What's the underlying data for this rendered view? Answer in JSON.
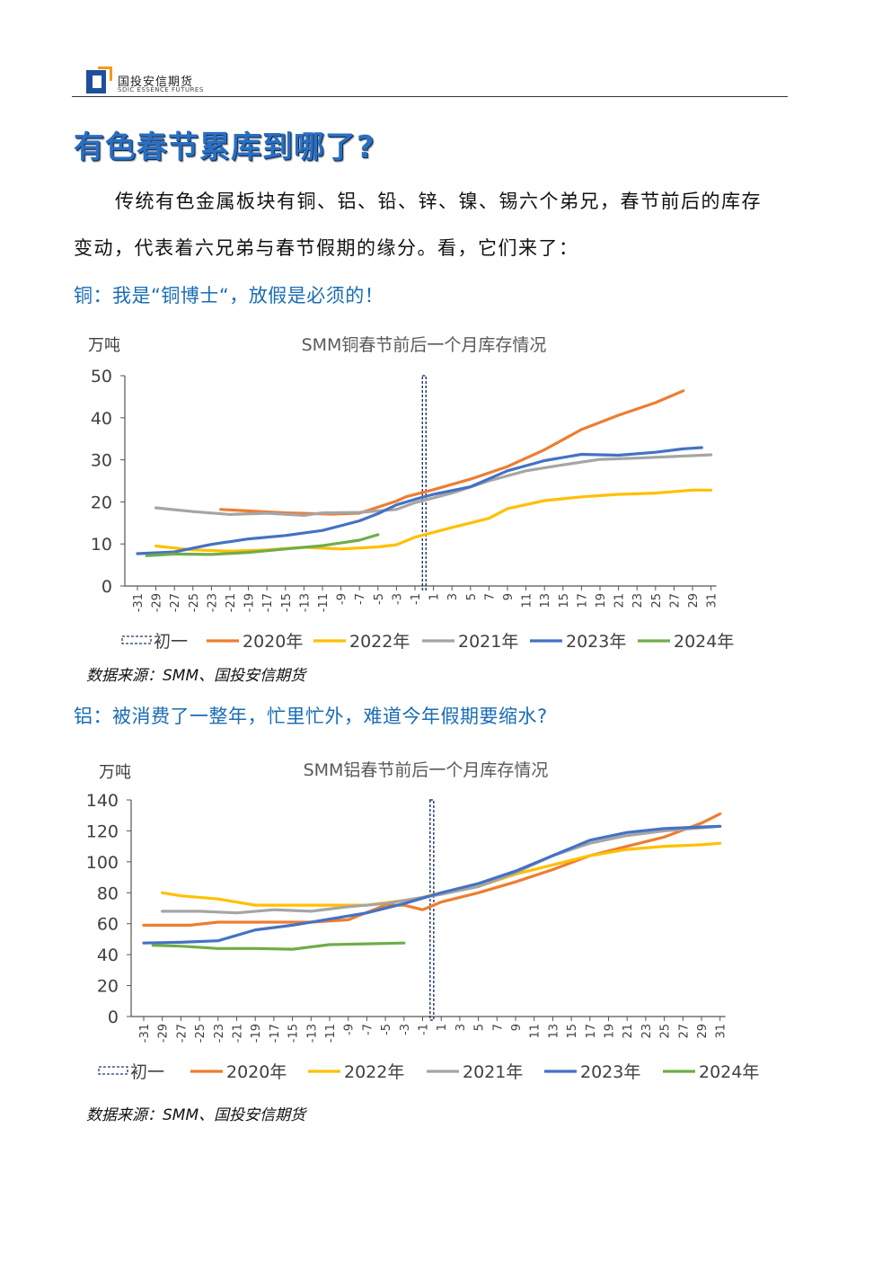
{
  "header": {
    "brand_cn": "国投安信期货",
    "brand_en": "SDIC ESSENCE FUTURES"
  },
  "title": "有色春节累库到哪了?",
  "paragraph": {
    "line1": "传统有色金属板块有铜、铝、铅、锌、镍、锡六个弟兄，春节前后的库存",
    "line2": "变动，代表着六兄弟与春节假期的缘分。看，它们来了："
  },
  "copper_heading": "铜：我是“铜博士“，放假是必须的！",
  "aluminum_heading": "铝：被消费了一整年，忙里忙外，难道今年假期要缩水?",
  "source_text": "数据来源：SMM、国投安信期货",
  "colors": {
    "s2020": "#ed7d31",
    "s2022": "#ffc000",
    "s2021": "#a5a5a5",
    "s2023": "#4472c4",
    "s2024": "#70ad47",
    "marker": "#1f3864"
  },
  "chart_data": [
    {
      "type": "line",
      "title": "SMM铜春节前后一个月库存情况",
      "ylabel": "万吨",
      "ylim": [
        0,
        50
      ],
      "yticks": [
        0,
        10,
        20,
        30,
        40,
        50
      ],
      "x_tick_labels": [
        "-31",
        "-29",
        "-27",
        "-25",
        "-23",
        "-21",
        "-19",
        "-17",
        "-15",
        "-13",
        "-11",
        "-9",
        "-7",
        "-5",
        "-3",
        "-1",
        "1",
        "3",
        "5",
        "7",
        "9",
        "11",
        "13",
        "15",
        "17",
        "19",
        "21",
        "23",
        "25",
        "27",
        "29",
        "31"
      ],
      "marker": {
        "name": "初一",
        "x": 0
      },
      "legend": [
        "初一",
        "2020年",
        "2022年",
        "2021年",
        "2023年",
        "2024年"
      ],
      "series": [
        {
          "name": "2020年",
          "color": "#ed7d31",
          "points": [
            [
              -22,
              18.2
            ],
            [
              -15,
              17.4
            ],
            [
              -10,
              17.1
            ],
            [
              -7,
              17.3
            ],
            [
              -3,
              20.2
            ],
            [
              -2,
              21.2
            ],
            [
              1,
              22.9
            ],
            [
              5,
              25.4
            ],
            [
              9,
              28.4
            ],
            [
              13,
              32.4
            ],
            [
              17,
              37.2
            ],
            [
              21,
              40.6
            ],
            [
              25,
              43.6
            ],
            [
              28,
              46.4
            ]
          ]
        },
        {
          "name": "2022年",
          "color": "#ffc000",
          "points": [
            [
              -29,
              9.5
            ],
            [
              -25,
              8.6
            ],
            [
              -21,
              8.3
            ],
            [
              -17,
              8.6
            ],
            [
              -13,
              9.2
            ],
            [
              -9,
              8.8
            ],
            [
              -5,
              9.3
            ],
            [
              -3,
              9.8
            ],
            [
              -1,
              11.6
            ],
            [
              3,
              13.9
            ],
            [
              7,
              16.1
            ],
            [
              9,
              18.4
            ],
            [
              13,
              20.3
            ],
            [
              17,
              21.2
            ],
            [
              21,
              21.8
            ],
            [
              25,
              22.1
            ],
            [
              29,
              22.8
            ],
            [
              31,
              22.8
            ]
          ]
        },
        {
          "name": "2021年",
          "color": "#a5a5a5",
          "points": [
            [
              -29,
              18.6
            ],
            [
              -25,
              17.7
            ],
            [
              -21,
              17.0
            ],
            [
              -17,
              17.3
            ],
            [
              -13,
              16.8
            ],
            [
              -11,
              17.4
            ],
            [
              -7,
              17.5
            ],
            [
              -3,
              18.2
            ],
            [
              -1,
              19.8
            ],
            [
              3,
              22.1
            ],
            [
              7,
              25.0
            ],
            [
              11,
              27.4
            ],
            [
              15,
              28.8
            ],
            [
              19,
              30.1
            ],
            [
              23,
              30.4
            ],
            [
              27,
              30.8
            ],
            [
              31,
              31.2
            ]
          ]
        },
        {
          "name": "2023年",
          "color": "#4472c4",
          "points": [
            [
              -31,
              7.7
            ],
            [
              -27,
              8.1
            ],
            [
              -23,
              9.9
            ],
            [
              -19,
              11.2
            ],
            [
              -15,
              12.0
            ],
            [
              -11,
              13.2
            ],
            [
              -7,
              15.5
            ],
            [
              -5,
              17.2
            ],
            [
              -3,
              19.3
            ],
            [
              -1,
              20.6
            ],
            [
              1,
              21.8
            ],
            [
              5,
              23.6
            ],
            [
              9,
              27.4
            ],
            [
              13,
              29.8
            ],
            [
              17,
              31.3
            ],
            [
              21,
              31.1
            ],
            [
              25,
              31.8
            ],
            [
              28,
              32.6
            ],
            [
              30,
              32.9
            ]
          ]
        },
        {
          "name": "2024年",
          "color": "#70ad47",
          "points": [
            [
              -30,
              7.2
            ],
            [
              -27,
              7.6
            ],
            [
              -23,
              7.5
            ],
            [
              -19,
              8.0
            ],
            [
              -15,
              8.8
            ],
            [
              -11,
              9.6
            ],
            [
              -7,
              10.9
            ],
            [
              -5,
              12.2
            ]
          ]
        }
      ]
    },
    {
      "type": "line",
      "title": "SMM铝春节前后一个月库存情况",
      "ylabel": "万吨",
      "ylim": [
        0,
        140
      ],
      "yticks": [
        0,
        20,
        40,
        60,
        80,
        100,
        120,
        140
      ],
      "x_tick_labels": [
        "-31",
        "-29",
        "-27",
        "-25",
        "-23",
        "-21",
        "-19",
        "-17",
        "-15",
        "-13",
        "-11",
        "-9",
        "-7",
        "-5",
        "-3",
        "-1",
        "1",
        "3",
        "5",
        "7",
        "9",
        "11",
        "13",
        "15",
        "17",
        "19",
        "21",
        "23",
        "25",
        "27",
        "29",
        "31"
      ],
      "marker": {
        "name": "初一",
        "x": 0
      },
      "legend": [
        "初一",
        "2020年",
        "2022年",
        "2021年",
        "2023年",
        "2024年"
      ],
      "series": [
        {
          "name": "2020年",
          "color": "#ed7d31",
          "points": [
            [
              -31,
              59
            ],
            [
              -26,
              59
            ],
            [
              -23,
              61
            ],
            [
              -19,
              61
            ],
            [
              -13,
              61
            ],
            [
              -9,
              62.5
            ],
            [
              -5,
              72
            ],
            [
              -3,
              72
            ],
            [
              -1,
              69
            ],
            [
              1,
              74
            ],
            [
              5,
              80
            ],
            [
              9,
              87
            ],
            [
              13,
              95
            ],
            [
              17,
              104
            ],
            [
              21,
              110
            ],
            [
              25,
              116
            ],
            [
              29,
              125
            ],
            [
              31,
              131
            ]
          ]
        },
        {
          "name": "2022年",
          "color": "#ffc000",
          "points": [
            [
              -29,
              80
            ],
            [
              -27,
              78
            ],
            [
              -23,
              76
            ],
            [
              -19,
              72
            ],
            [
              -15,
              72
            ],
            [
              -11,
              72
            ],
            [
              -7,
              72
            ],
            [
              -3,
              75
            ],
            [
              -1,
              77
            ],
            [
              1,
              80
            ],
            [
              5,
              84
            ],
            [
              9,
              92
            ],
            [
              13,
              98
            ],
            [
              17,
              104
            ],
            [
              21,
              108
            ],
            [
              25,
              110
            ],
            [
              29,
              111
            ],
            [
              31,
              112
            ]
          ]
        },
        {
          "name": "2021年",
          "color": "#a5a5a5",
          "points": [
            [
              -29,
              68
            ],
            [
              -25,
              68
            ],
            [
              -21,
              67
            ],
            [
              -17,
              69
            ],
            [
              -13,
              68
            ],
            [
              -9,
              71
            ],
            [
              -5,
              73
            ],
            [
              -3,
              75
            ],
            [
              1,
              79
            ],
            [
              5,
              84
            ],
            [
              9,
              93
            ],
            [
              13,
              104
            ],
            [
              17,
              112
            ],
            [
              21,
              117
            ],
            [
              25,
              120
            ],
            [
              29,
              122
            ],
            [
              31,
              123
            ]
          ]
        },
        {
          "name": "2023年",
          "color": "#4472c4",
          "points": [
            [
              -31,
              47.5
            ],
            [
              -27,
              48
            ],
            [
              -23,
              49
            ],
            [
              -19,
              56
            ],
            [
              -15,
              59
            ],
            [
              -11,
              63
            ],
            [
              -7,
              67
            ],
            [
              -3,
              73
            ],
            [
              1,
              80
            ],
            [
              5,
              86
            ],
            [
              9,
              94
            ],
            [
              13,
              104
            ],
            [
              17,
              114
            ],
            [
              21,
              119
            ],
            [
              25,
              121.5
            ],
            [
              29,
              122.5
            ],
            [
              31,
              123
            ]
          ]
        },
        {
          "name": "2024年",
          "color": "#70ad47",
          "points": [
            [
              -30,
              46
            ],
            [
              -27,
              45.5
            ],
            [
              -23,
              44
            ],
            [
              -19,
              44
            ],
            [
              -15,
              43.5
            ],
            [
              -11,
              46.5
            ],
            [
              -7,
              47
            ],
            [
              -3,
              47.5
            ]
          ]
        }
      ]
    }
  ]
}
